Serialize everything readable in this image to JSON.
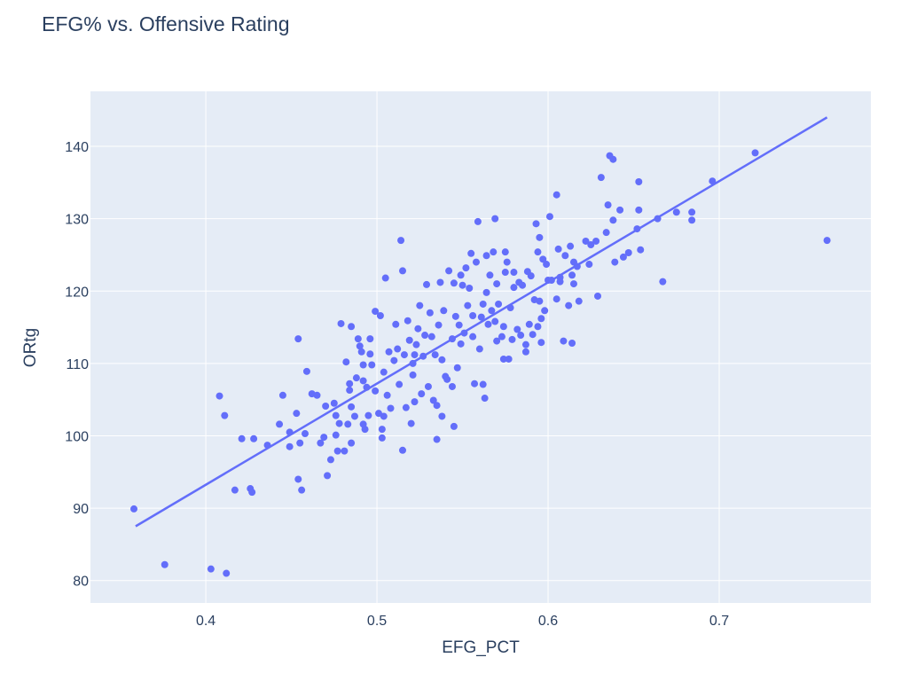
{
  "chart_data": {
    "type": "scatter",
    "title": "EFG% vs. Offensive Rating",
    "x_label": "EFG_PCT",
    "y_label": "ORtg",
    "xlim": [
      0.3326,
      0.7886
    ],
    "ylim": [
      76.9,
      147.6
    ],
    "xticks": [
      0.4,
      0.5,
      0.6,
      0.7
    ],
    "yticks": [
      80,
      90,
      100,
      110,
      120,
      130,
      140
    ],
    "grid": true,
    "series": [
      {
        "mode": "markers",
        "color": "#636efa",
        "x": [
          0.358,
          0.376,
          0.403,
          0.412,
          0.408,
          0.411,
          0.417,
          0.421,
          0.426,
          0.427,
          0.428,
          0.436,
          0.443,
          0.445,
          0.449,
          0.449,
          0.453,
          0.454,
          0.454,
          0.456,
          0.455,
          0.458,
          0.459,
          0.462,
          0.465,
          0.467,
          0.469,
          0.47,
          0.471,
          0.473,
          0.475,
          0.476,
          0.476,
          0.477,
          0.478,
          0.479,
          0.481,
          0.482,
          0.483,
          0.484,
          0.484,
          0.485,
          0.485,
          0.485,
          0.487,
          0.488,
          0.489,
          0.49,
          0.491,
          0.492,
          0.492,
          0.492,
          0.493,
          0.494,
          0.495,
          0.496,
          0.496,
          0.497,
          0.499,
          0.499,
          0.501,
          0.502,
          0.503,
          0.503,
          0.504,
          0.504,
          0.505,
          0.506,
          0.507,
          0.508,
          0.51,
          0.511,
          0.512,
          0.513,
          0.514,
          0.515,
          0.515,
          0.516,
          0.517,
          0.518,
          0.519,
          0.52,
          0.521,
          0.521,
          0.522,
          0.522,
          0.523,
          0.524,
          0.525,
          0.526,
          0.527,
          0.528,
          0.529,
          0.53,
          0.531,
          0.532,
          0.533,
          0.534,
          0.535,
          0.535,
          0.536,
          0.537,
          0.538,
          0.538,
          0.539,
          0.54,
          0.541,
          0.542,
          0.544,
          0.544,
          0.545,
          0.545,
          0.546,
          0.547,
          0.548,
          0.549,
          0.549,
          0.55,
          0.551,
          0.552,
          0.553,
          0.554,
          0.555,
          0.556,
          0.556,
          0.557,
          0.558,
          0.559,
          0.56,
          0.561,
          0.562,
          0.562,
          0.563,
          0.564,
          0.564,
          0.565,
          0.566,
          0.567,
          0.568,
          0.569,
          0.569,
          0.57,
          0.57,
          0.571,
          0.573,
          0.574,
          0.574,
          0.575,
          0.575,
          0.576,
          0.577,
          0.578,
          0.579,
          0.58,
          0.58,
          0.582,
          0.583,
          0.584,
          0.585,
          0.587,
          0.587,
          0.588,
          0.589,
          0.59,
          0.591,
          0.592,
          0.593,
          0.594,
          0.594,
          0.595,
          0.595,
          0.596,
          0.596,
          0.597,
          0.598,
          0.599,
          0.6,
          0.601,
          0.602,
          0.605,
          0.605,
          0.606,
          0.607,
          0.607,
          0.609,
          0.61,
          0.612,
          0.613,
          0.614,
          0.614,
          0.615,
          0.615,
          0.617,
          0.618,
          0.622,
          0.624,
          0.625,
          0.628,
          0.629,
          0.631,
          0.634,
          0.635,
          0.636,
          0.638,
          0.638,
          0.639,
          0.642,
          0.644,
          0.647,
          0.652,
          0.653,
          0.653,
          0.654,
          0.664,
          0.667,
          0.675,
          0.684,
          0.684,
          0.696,
          0.721,
          0.763
        ],
        "values": [
          89.9,
          82.2,
          81.6,
          81.0,
          105.5,
          102.8,
          92.5,
          99.6,
          92.7,
          92.2,
          99.6,
          98.7,
          101.6,
          105.6,
          100.5,
          98.5,
          103.1,
          113.4,
          94.0,
          92.5,
          99.0,
          100.3,
          108.9,
          105.8,
          105.6,
          99.0,
          99.8,
          104.1,
          94.5,
          96.7,
          104.5,
          102.8,
          100.1,
          97.9,
          101.7,
          115.5,
          97.9,
          110.2,
          101.6,
          107.2,
          106.3,
          104.0,
          115.1,
          99.0,
          102.7,
          108.0,
          113.4,
          112.4,
          111.6,
          107.6,
          109.8,
          101.6,
          100.9,
          106.7,
          102.8,
          111.3,
          113.4,
          109.8,
          117.2,
          106.2,
          103.1,
          116.6,
          100.9,
          99.7,
          108.8,
          102.7,
          121.8,
          105.6,
          111.6,
          103.8,
          110.4,
          115.4,
          112.0,
          107.1,
          127.0,
          122.8,
          98.0,
          111.2,
          103.9,
          115.9,
          113.2,
          101.7,
          108.4,
          110.0,
          104.7,
          111.2,
          112.6,
          114.8,
          118.0,
          105.8,
          111.0,
          113.9,
          120.9,
          106.8,
          117.0,
          113.7,
          104.9,
          111.2,
          104.2,
          99.5,
          115.3,
          121.2,
          110.5,
          102.7,
          117.3,
          108.2,
          107.8,
          122.8,
          113.4,
          106.8,
          101.3,
          121.1,
          116.5,
          109.4,
          115.3,
          122.2,
          112.7,
          120.8,
          114.2,
          123.2,
          118.0,
          120.4,
          125.2,
          113.7,
          116.6,
          107.2,
          124.0,
          129.6,
          112.0,
          116.4,
          118.2,
          107.1,
          105.2,
          124.9,
          119.8,
          115.4,
          122.2,
          117.3,
          125.4,
          115.8,
          130.0,
          113.1,
          121.0,
          118.2,
          113.7,
          110.6,
          115.1,
          122.6,
          125.4,
          124.0,
          110.6,
          117.7,
          113.3,
          122.6,
          120.5,
          114.7,
          121.2,
          113.9,
          120.8,
          111.6,
          112.6,
          122.7,
          115.4,
          122.1,
          114.0,
          118.8,
          129.3,
          115.1,
          125.4,
          127.4,
          118.6,
          112.9,
          116.2,
          124.4,
          117.3,
          123.7,
          121.5,
          130.3,
          121.5,
          133.3,
          118.9,
          125.8,
          121.9,
          121.3,
          113.1,
          124.9,
          118.0,
          126.2,
          112.8,
          122.2,
          121.0,
          124.0,
          123.4,
          118.6,
          126.9,
          123.7,
          126.4,
          126.9,
          119.3,
          135.7,
          128.1,
          131.9,
          138.7,
          138.2,
          129.8,
          124.0,
          131.2,
          124.7,
          125.3,
          128.6,
          131.2,
          135.1,
          125.7,
          130.0,
          121.3,
          130.9,
          130.9,
          129.8,
          135.2,
          139.1,
          127.0
        ]
      },
      {
        "mode": "lines",
        "color": "#636efa",
        "x": [
          0.359,
          0.763
        ],
        "values": [
          87.5,
          144.0
        ]
      }
    ]
  }
}
